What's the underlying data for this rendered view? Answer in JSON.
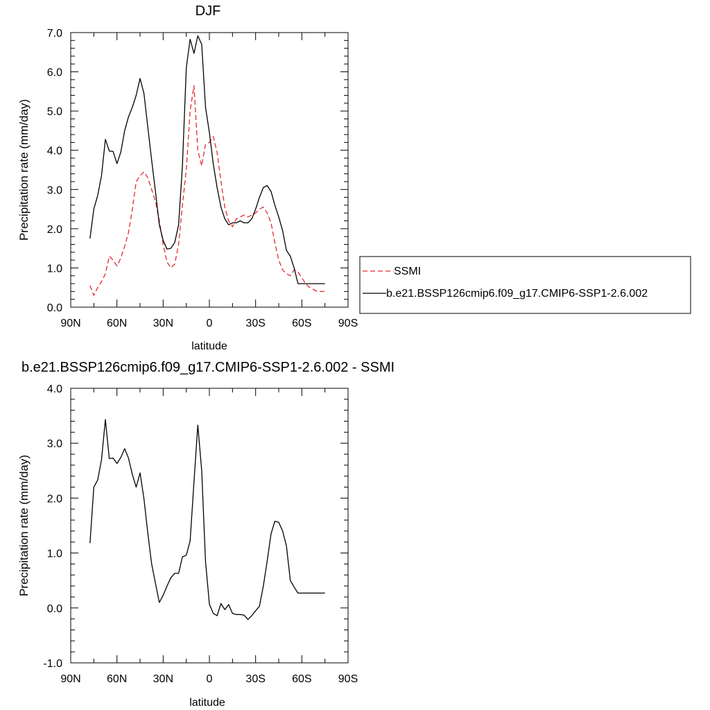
{
  "chart_data": [
    {
      "type": "line",
      "title": "DJF",
      "xlabel": "latitude",
      "ylabel": "Precipitation rate (mm/day)",
      "xlim": [
        -90,
        90
      ],
      "ylim": [
        0,
        7
      ],
      "x_ticks": [
        -90,
        -60,
        -30,
        0,
        30,
        60,
        90
      ],
      "x_tick_labels": [
        "90N",
        "60N",
        "30N",
        "0",
        "30S",
        "60S",
        "90S"
      ],
      "y_ticks": [
        0,
        1,
        2,
        3,
        4,
        5,
        6,
        7
      ],
      "y_tick_labels": [
        "0.0",
        "1.0",
        "2.0",
        "3.0",
        "4.0",
        "5.0",
        "6.0",
        "7.0"
      ],
      "legend": {
        "placement": "right"
      },
      "series": [
        {
          "name": "SSMI",
          "color": "#e8262c",
          "dash": "dashed",
          "x": [
            -77.5,
            -75,
            -72.5,
            -70,
            -67.5,
            -65,
            -62.5,
            -60,
            -57.5,
            -55,
            -52.5,
            -50,
            -47.5,
            -45,
            -42.5,
            -40,
            -37.5,
            -35,
            -32.5,
            -30,
            -27.5,
            -25,
            -22.5,
            -20,
            -17.5,
            -15,
            -12.5,
            -10,
            -7.5,
            -5,
            -2.5,
            0,
            2.5,
            5,
            7.5,
            10,
            12.5,
            15,
            17.5,
            20,
            22.5,
            25,
            27.5,
            30,
            32.5,
            35,
            37.5,
            40,
            42.5,
            45,
            47.5,
            50,
            52.5,
            55,
            57.5,
            60,
            62.5,
            65,
            67.5,
            70,
            72.5,
            75
          ],
          "y": [
            0.55,
            0.3,
            0.5,
            0.65,
            0.85,
            1.3,
            1.2,
            1.05,
            1.25,
            1.55,
            1.9,
            2.5,
            3.2,
            3.35,
            3.45,
            3.3,
            3.0,
            2.7,
            2.2,
            1.6,
            1.15,
            1.0,
            1.1,
            1.6,
            2.6,
            3.5,
            5.0,
            5.65,
            4.0,
            3.6,
            4.15,
            4.2,
            4.35,
            3.95,
            3.2,
            2.55,
            2.2,
            2.05,
            2.25,
            2.3,
            2.35,
            2.3,
            2.35,
            2.4,
            2.5,
            2.55,
            2.4,
            2.15,
            1.65,
            1.2,
            0.95,
            0.85,
            0.8,
            0.95,
            0.9,
            0.75,
            0.6,
            0.5,
            0.45,
            0.4,
            0.4,
            0.4
          ]
        },
        {
          "name": "b.e21.BSSP126cmip6.f09_g17.CMIP6-SSP1-2.6.002",
          "color": "#000000",
          "dash": "solid",
          "x": [
            -77.5,
            -75,
            -72.5,
            -70,
            -67.5,
            -65,
            -62.5,
            -60,
            -57.5,
            -55,
            -52.5,
            -50,
            -47.5,
            -45,
            -42.5,
            -40,
            -37.5,
            -35,
            -32.5,
            -30,
            -27.5,
            -25,
            -22.5,
            -20,
            -17.5,
            -15,
            -12.5,
            -10,
            -7.5,
            -5,
            -2.5,
            0,
            2.5,
            5,
            7.5,
            10,
            12.5,
            15,
            17.5,
            20,
            22.5,
            25,
            27.5,
            30,
            32.5,
            35,
            37.5,
            40,
            42.5,
            45,
            47.5,
            50,
            52.5,
            55,
            57.5,
            60,
            62.5,
            65,
            67.5,
            70,
            72.5,
            75
          ],
          "y": [
            1.75,
            2.5,
            2.85,
            3.35,
            4.28,
            3.98,
            3.97,
            3.66,
            3.95,
            4.5,
            4.85,
            5.1,
            5.4,
            5.83,
            5.45,
            4.6,
            3.75,
            2.95,
            2.1,
            1.7,
            1.48,
            1.5,
            1.65,
            2.1,
            3.6,
            6.1,
            6.83,
            6.47,
            6.92,
            6.7,
            5.1,
            4.45,
            3.65,
            3.05,
            2.55,
            2.25,
            2.1,
            2.15,
            2.15,
            2.2,
            2.15,
            2.15,
            2.25,
            2.5,
            2.8,
            3.05,
            3.1,
            2.95,
            2.6,
            2.3,
            1.95,
            1.45,
            1.3,
            1.0,
            0.6,
            0.6,
            0.6,
            0.6,
            0.6,
            0.6,
            0.6,
            0.6
          ]
        }
      ]
    },
    {
      "type": "line",
      "title": "b.e21.BSSP126cmip6.f09_g17.CMIP6-SSP1-2.6.002 - SSMI",
      "xlabel": "latitude",
      "ylabel": "Precipitation rate (mm/day)",
      "xlim": [
        -90,
        90
      ],
      "ylim": [
        -1,
        4
      ],
      "x_ticks": [
        -90,
        -60,
        -30,
        0,
        30,
        60,
        90
      ],
      "x_tick_labels": [
        "90N",
        "60N",
        "30N",
        "0",
        "30S",
        "60S",
        "90S"
      ],
      "y_ticks": [
        -1,
        0,
        1,
        2,
        3,
        4
      ],
      "y_tick_labels": [
        "-1.0",
        "0.0",
        "1.0",
        "2.0",
        "3.0",
        "4.0"
      ],
      "series": [
        {
          "color": "#000000",
          "dash": "solid",
          "x": [
            -77.5,
            -75,
            -72.5,
            -70,
            -67.5,
            -65,
            -62.5,
            -60,
            -57.5,
            -55,
            -52.5,
            -50,
            -47.5,
            -45,
            -42.5,
            -40,
            -37.5,
            -35,
            -32.5,
            -30,
            -27.5,
            -25,
            -22.5,
            -20,
            -17.5,
            -15,
            -12.5,
            -10,
            -7.5,
            -5,
            -2.5,
            0,
            2.5,
            5,
            7.5,
            10,
            12.5,
            15,
            17.5,
            20,
            22.5,
            25,
            27.5,
            30,
            32.5,
            35,
            37.5,
            40,
            42.5,
            45,
            47.5,
            50,
            52.5,
            55,
            57.5,
            60,
            62.5,
            65,
            67.5,
            70,
            72.5,
            75
          ],
          "y": [
            1.18,
            2.2,
            2.33,
            2.7,
            3.43,
            2.72,
            2.73,
            2.63,
            2.74,
            2.9,
            2.73,
            2.43,
            2.2,
            2.46,
            1.99,
            1.37,
            0.8,
            0.45,
            0.1,
            0.23,
            0.4,
            0.55,
            0.63,
            0.63,
            0.93,
            0.96,
            1.22,
            2.3,
            3.33,
            2.5,
            0.85,
            0.07,
            -0.1,
            -0.14,
            0.08,
            -0.03,
            0.06,
            -0.1,
            -0.12,
            -0.12,
            -0.13,
            -0.21,
            -0.14,
            -0.05,
            0.03,
            0.4,
            0.85,
            1.35,
            1.58,
            1.56,
            1.4,
            1.13,
            0.5,
            0.38,
            0.27,
            0.27,
            0.27,
            0.27,
            0.27,
            0.27,
            0.27,
            0.27
          ]
        }
      ]
    }
  ]
}
